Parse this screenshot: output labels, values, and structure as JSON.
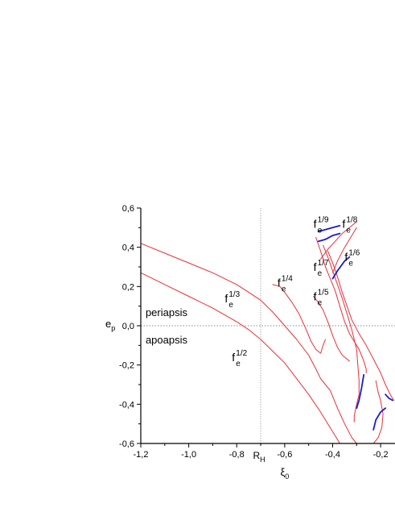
{
  "chart_data": {
    "type": "line",
    "title": "",
    "xlabel": {
      "base": "ξ",
      "sub": "0"
    },
    "ylabel": {
      "base": "e",
      "sub": "p"
    },
    "xlim": [
      -1.2,
      -0.14
    ],
    "ylim": [
      -0.6,
      0.6
    ],
    "xticks": [
      {
        "value": -1.2,
        "label": "-1,2"
      },
      {
        "value": -1.0,
        "label": "-1,0"
      },
      {
        "value": -0.8,
        "label": "-0,8"
      },
      {
        "value": -0.6,
        "label": "-0,6"
      },
      {
        "value": -0.4,
        "label": "-0,4"
      },
      {
        "value": -0.2,
        "label": "-0,2"
      }
    ],
    "xtick_special": {
      "value": -0.7,
      "base": "R",
      "sub": "H"
    },
    "yticks": [
      {
        "value": 0.6,
        "label": "0,6"
      },
      {
        "value": 0.4,
        "label": "0,4"
      },
      {
        "value": 0.2,
        "label": "0,2"
      },
      {
        "value": 0.0,
        "label": "0,0"
      },
      {
        "value": -0.2,
        "label": "-0,2"
      },
      {
        "value": -0.4,
        "label": "-0,4"
      },
      {
        "value": -0.6,
        "label": "-0,6"
      }
    ],
    "reference_lines": [
      {
        "orientation": "vertical",
        "value": -0.7,
        "style": "dotted",
        "color": "#9a9a9a"
      },
      {
        "orientation": "horizontal",
        "value": 0.0,
        "style": "dotted",
        "color": "#666666"
      }
    ],
    "region_labels": [
      {
        "text": "periapsis",
        "x": -1.18,
        "y": 0.05
      },
      {
        "text": "apoapsis",
        "x": -1.18,
        "y": -0.09
      }
    ],
    "annotations": [
      {
        "base": "f",
        "sub": "e",
        "sup": "1/2",
        "x": -0.82,
        "y": -0.18
      },
      {
        "base": "f",
        "sub": "e",
        "sup": "1/3",
        "x": -0.85,
        "y": 0.12
      },
      {
        "base": "f",
        "sub": "e",
        "sup": "1/4",
        "x": -0.63,
        "y": 0.2
      },
      {
        "base": "f",
        "sub": "e",
        "sup": "1/5",
        "x": -0.48,
        "y": 0.13
      },
      {
        "base": "f",
        "sub": "e",
        "sup": "1/6",
        "x": -0.35,
        "y": 0.33
      },
      {
        "base": "f",
        "sub": "e",
        "sup": "1/7",
        "x": -0.48,
        "y": 0.28
      },
      {
        "base": "f",
        "sub": "e",
        "sup": "1/8",
        "x": -0.36,
        "y": 0.5
      },
      {
        "base": "f",
        "sub": "e",
        "sup": "1/9",
        "x": -0.48,
        "y": 0.5
      }
    ],
    "colors": {
      "red": "#e8303a",
      "blue": "#1a1ad0"
    },
    "series": [
      {
        "color": "#e8303a",
        "points": [
          [
            -1.2,
            0.42
          ],
          [
            -1.1,
            0.37
          ],
          [
            -1.0,
            0.32
          ],
          [
            -0.9,
            0.27
          ],
          [
            -0.8,
            0.21
          ],
          [
            -0.75,
            0.17
          ],
          [
            -0.7,
            0.13
          ],
          [
            -0.65,
            0.07
          ],
          [
            -0.6,
            0.0
          ],
          [
            -0.55,
            -0.07
          ],
          [
            -0.5,
            -0.15
          ],
          [
            -0.47,
            -0.22
          ],
          [
            -0.45,
            -0.27
          ],
          [
            -0.43,
            -0.3
          ],
          [
            -0.41,
            -0.33
          ],
          [
            -0.38,
            -0.42
          ],
          [
            -0.35,
            -0.5
          ],
          [
            -0.32,
            -0.57
          ],
          [
            -0.3,
            -0.6
          ]
        ]
      },
      {
        "color": "#e8303a",
        "points": [
          [
            -1.2,
            0.27
          ],
          [
            -1.1,
            0.21
          ],
          [
            -1.0,
            0.15
          ],
          [
            -0.9,
            0.09
          ],
          [
            -0.8,
            0.02
          ],
          [
            -0.75,
            -0.02
          ],
          [
            -0.7,
            -0.07
          ],
          [
            -0.65,
            -0.13
          ],
          [
            -0.6,
            -0.19
          ],
          [
            -0.55,
            -0.27
          ],
          [
            -0.5,
            -0.35
          ],
          [
            -0.45,
            -0.44
          ],
          [
            -0.42,
            -0.5
          ],
          [
            -0.4,
            -0.54
          ],
          [
            -0.38,
            -0.58
          ],
          [
            -0.37,
            -0.6
          ]
        ]
      },
      {
        "color": "#e8303a",
        "points": [
          [
            -0.65,
            0.21
          ],
          [
            -0.62,
            0.2
          ],
          [
            -0.6,
            0.17
          ],
          [
            -0.57,
            0.12
          ],
          [
            -0.54,
            0.06
          ],
          [
            -0.51,
            -0.02
          ],
          [
            -0.49,
            -0.08
          ],
          [
            -0.47,
            -0.12
          ],
          [
            -0.45,
            -0.14
          ],
          [
            -0.44,
            -0.1
          ],
          [
            -0.43,
            -0.07
          ]
        ]
      },
      {
        "color": "#e8303a",
        "points": [
          [
            -0.48,
            0.15
          ],
          [
            -0.46,
            0.12
          ],
          [
            -0.44,
            0.08
          ],
          [
            -0.42,
            0.02
          ],
          [
            -0.4,
            -0.05
          ],
          [
            -0.38,
            -0.11
          ],
          [
            -0.36,
            -0.15
          ],
          [
            -0.34,
            -0.17
          ],
          [
            -0.33,
            -0.18
          ]
        ]
      },
      {
        "color": "#e8303a",
        "points": [
          [
            -0.47,
            0.45
          ],
          [
            -0.45,
            0.38
          ],
          [
            -0.43,
            0.3
          ],
          [
            -0.41,
            0.24
          ],
          [
            -0.39,
            0.18
          ],
          [
            -0.37,
            0.1
          ],
          [
            -0.35,
            0.02
          ],
          [
            -0.33,
            -0.04
          ],
          [
            -0.31,
            -0.08
          ],
          [
            -0.29,
            -0.12
          ],
          [
            -0.28,
            -0.15
          ],
          [
            -0.27,
            -0.18
          ],
          [
            -0.26,
            -0.22
          ],
          [
            -0.26,
            -0.24
          ]
        ]
      },
      {
        "color": "#e8303a",
        "points": [
          [
            -0.44,
            0.41
          ],
          [
            -0.42,
            0.35
          ],
          [
            -0.4,
            0.28
          ],
          [
            -0.38,
            0.21
          ],
          [
            -0.36,
            0.14
          ],
          [
            -0.34,
            0.06
          ],
          [
            -0.32,
            -0.02
          ],
          [
            -0.3,
            -0.12
          ],
          [
            -0.295,
            -0.2
          ],
          [
            -0.29,
            -0.28
          ],
          [
            -0.29,
            -0.35
          ],
          [
            -0.3,
            -0.4
          ],
          [
            -0.31,
            -0.46
          ],
          [
            -0.31,
            -0.49
          ]
        ]
      },
      {
        "color": "#e8303a",
        "points": [
          [
            -0.42,
            0.38
          ],
          [
            -0.4,
            0.32
          ],
          [
            -0.38,
            0.25
          ],
          [
            -0.36,
            0.17
          ],
          [
            -0.34,
            0.1
          ],
          [
            -0.32,
            0.03
          ],
          [
            -0.29,
            -0.04
          ],
          [
            -0.26,
            -0.1
          ],
          [
            -0.23,
            -0.17
          ],
          [
            -0.2,
            -0.24
          ],
          [
            -0.18,
            -0.3
          ],
          [
            -0.16,
            -0.35
          ],
          [
            -0.145,
            -0.38
          ]
        ]
      },
      {
        "color": "#e8303a",
        "points": [
          [
            -0.3,
            0.53
          ],
          [
            -0.33,
            0.5
          ],
          [
            -0.36,
            0.47
          ],
          [
            -0.39,
            0.43
          ],
          [
            -0.42,
            0.39
          ],
          [
            -0.45,
            0.34
          ]
        ]
      },
      {
        "color": "#e8303a",
        "points": [
          [
            -0.3,
            0.5
          ],
          [
            -0.32,
            0.46
          ],
          [
            -0.35,
            0.4
          ],
          [
            -0.38,
            0.33
          ],
          [
            -0.4,
            0.27
          ]
        ]
      },
      {
        "color": "#e8303a",
        "points": [
          [
            -0.22,
            -0.28
          ],
          [
            -0.21,
            -0.34
          ],
          [
            -0.2,
            -0.38
          ],
          [
            -0.19,
            -0.45
          ],
          [
            -0.195,
            -0.52
          ],
          [
            -0.21,
            -0.57
          ],
          [
            -0.23,
            -0.6
          ]
        ]
      },
      {
        "color": "#1a1ad0",
        "points": [
          [
            -0.46,
            0.48
          ],
          [
            -0.43,
            0.49
          ],
          [
            -0.4,
            0.5
          ],
          [
            -0.37,
            0.51
          ]
        ]
      },
      {
        "color": "#1a1ad0",
        "points": [
          [
            -0.46,
            0.43
          ],
          [
            -0.43,
            0.44
          ],
          [
            -0.4,
            0.46
          ],
          [
            -0.37,
            0.47
          ]
        ]
      },
      {
        "color": "#1a1ad0",
        "points": [
          [
            -0.4,
            0.24
          ],
          [
            -0.38,
            0.28
          ],
          [
            -0.35,
            0.33
          ],
          [
            -0.33,
            0.35
          ]
        ]
      },
      {
        "color": "#1a1ad0",
        "points": [
          [
            -0.27,
            -0.25
          ],
          [
            -0.28,
            -0.32
          ],
          [
            -0.29,
            -0.38
          ],
          [
            -0.3,
            -0.42
          ]
        ]
      },
      {
        "color": "#1a1ad0",
        "points": [
          [
            -0.23,
            -0.53
          ],
          [
            -0.22,
            -0.48
          ],
          [
            -0.2,
            -0.44
          ],
          [
            -0.18,
            -0.42
          ]
        ]
      },
      {
        "color": "#1a1ad0",
        "points": [
          [
            -0.18,
            -0.35
          ],
          [
            -0.165,
            -0.37
          ],
          [
            -0.15,
            -0.38
          ]
        ]
      }
    ]
  }
}
